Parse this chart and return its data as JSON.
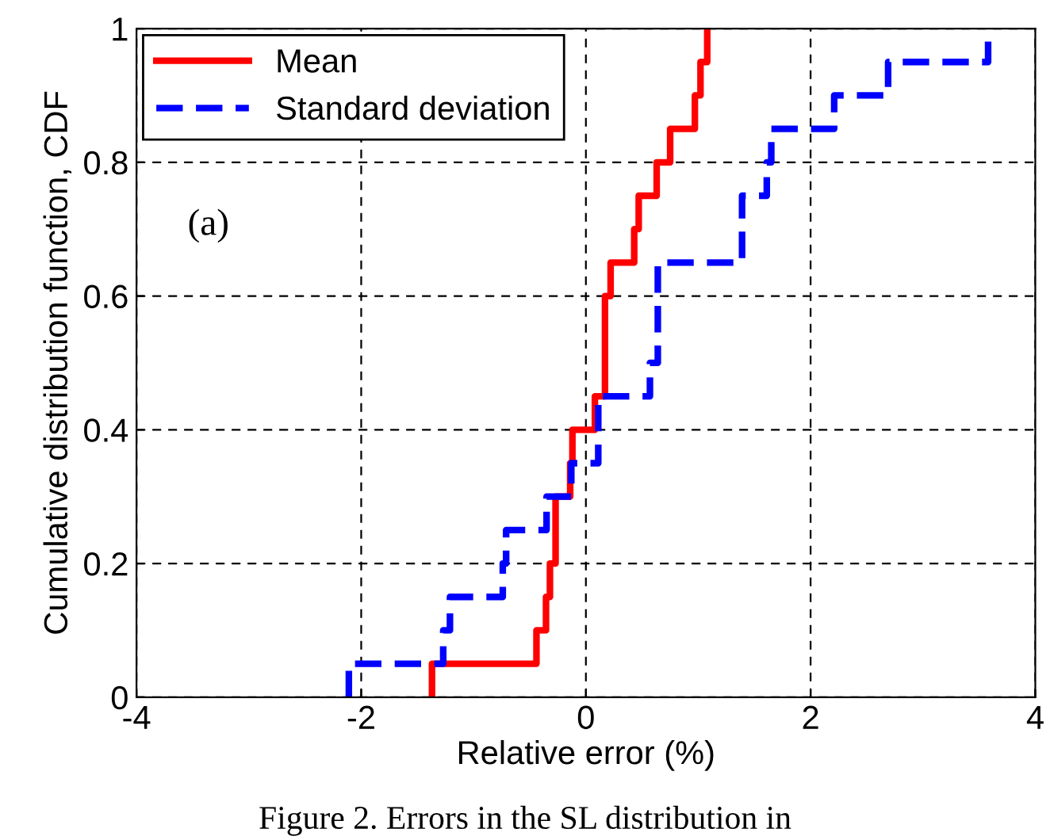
{
  "chart_data": {
    "type": "step",
    "xlabel": "Relative error (%)",
    "ylabel": "Cumulative distribution function, CDF",
    "xlim": [
      -4,
      4
    ],
    "xticks": [
      -4,
      -2,
      0,
      2,
      4
    ],
    "ylim": [
      0,
      1
    ],
    "yticks": [
      0,
      0.2,
      0.4,
      0.6,
      0.8,
      1
    ],
    "grid": true,
    "legend": "top left",
    "series": [
      {
        "name": "Mean",
        "color": "#ff0000",
        "line_style": "solid",
        "x": [
          -1.37,
          -1.37,
          -0.44,
          -0.355,
          -0.32,
          -0.27,
          -0.14,
          -0.12,
          0.08,
          0.17,
          0.22,
          0.43,
          0.47,
          0.63,
          0.75,
          0.97,
          1.02,
          1.08
        ],
        "values": [
          0,
          0.05,
          0.1,
          0.15,
          0.2,
          0.3,
          0.35,
          0.4,
          0.45,
          0.6,
          0.65,
          0.7,
          0.75,
          0.8,
          0.85,
          0.9,
          0.95,
          1.0
        ]
      },
      {
        "name": "Standard deviation",
        "color": "#0000ff",
        "line_style": "dashed",
        "x": [
          -2.11,
          -2.11,
          -1.27,
          -1.21,
          -0.74,
          -0.71,
          -0.35,
          -0.13,
          0.11,
          0.57,
          0.64,
          1.39,
          1.61,
          1.65,
          2.21,
          2.69,
          3.58
        ],
        "values": [
          0,
          0.05,
          0.1,
          0.15,
          0.2,
          0.25,
          0.3,
          0.35,
          0.45,
          0.5,
          0.65,
          0.75,
          0.8,
          0.85,
          0.9,
          0.95,
          1.0
        ]
      }
    ],
    "annotations": [
      "(a)",
      "Figure 2. Errors in the SL distribution in"
    ]
  }
}
